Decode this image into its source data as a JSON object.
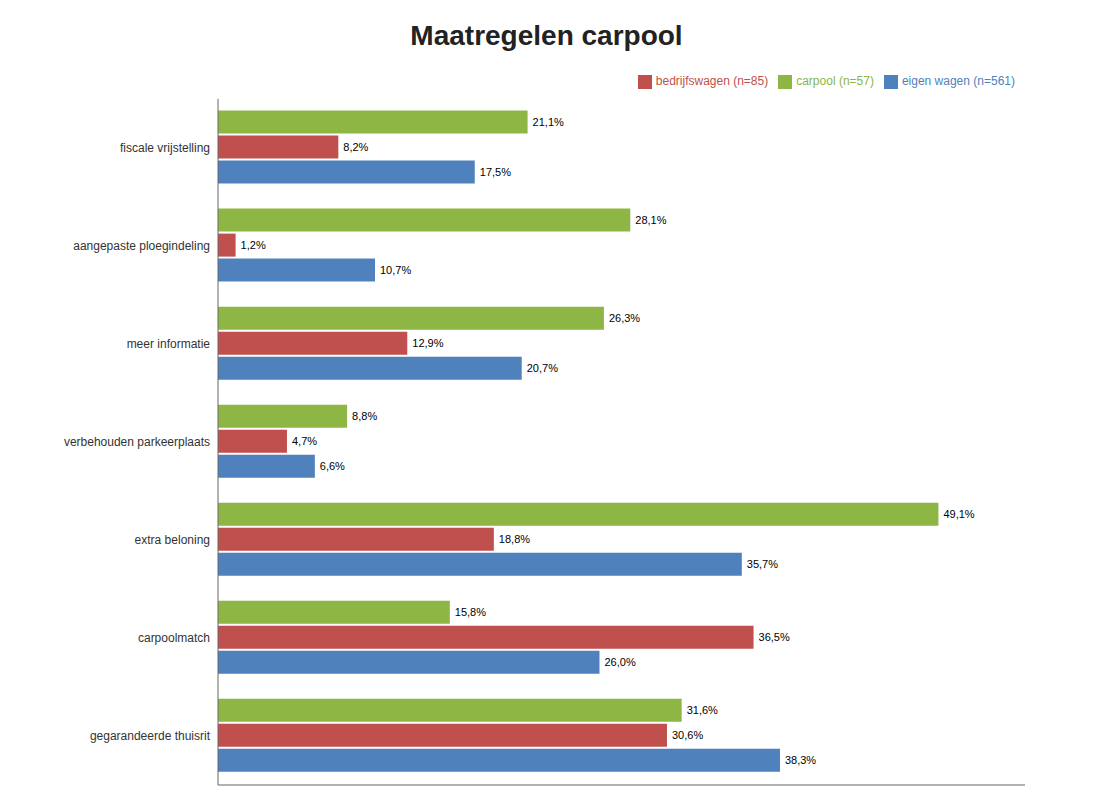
{
  "chart_data": {
    "type": "bar",
    "orientation": "horizontal",
    "title": "Maatregelen carpool",
    "categories": [
      "fiscale vrijstelling",
      "aangepaste ploegindeling",
      "meer informatie",
      "verbehouden parkeerplaats",
      "extra beloning",
      "carpoolmatch",
      "gegarandeerde thuisrit"
    ],
    "series": [
      {
        "name": "carpool (n=57)",
        "color": "#8db645",
        "values": [
          21.1,
          28.1,
          26.3,
          8.8,
          49.1,
          15.8,
          31.6
        ],
        "value_labels": [
          "21,1%",
          "28,1%",
          "26,3%",
          "8,8%",
          "49,1%",
          "15,8%",
          "31,6%"
        ]
      },
      {
        "name": "bedrijfswagen (n=85)",
        "color": "#c0504d",
        "values": [
          8.2,
          1.2,
          12.9,
          4.7,
          18.8,
          36.5,
          30.6
        ],
        "value_labels": [
          "8,2%",
          "1,2%",
          "12,9%",
          "4,7%",
          "18,8%",
          "36,5%",
          "30,6%"
        ]
      },
      {
        "name": "eigen wagen (n=561)",
        "color": "#4f81bd",
        "values": [
          17.5,
          10.7,
          20.7,
          6.6,
          35.7,
          26.0,
          38.3
        ],
        "value_labels": [
          "17,5%",
          "10,7%",
          "20,7%",
          "6,6%",
          "35,7%",
          "26,0%",
          "38,3%"
        ]
      }
    ],
    "xlim": [
      0,
      55
    ],
    "data_labels": true,
    "tick_labels": "y",
    "legend": "upper right",
    "grid": false
  }
}
